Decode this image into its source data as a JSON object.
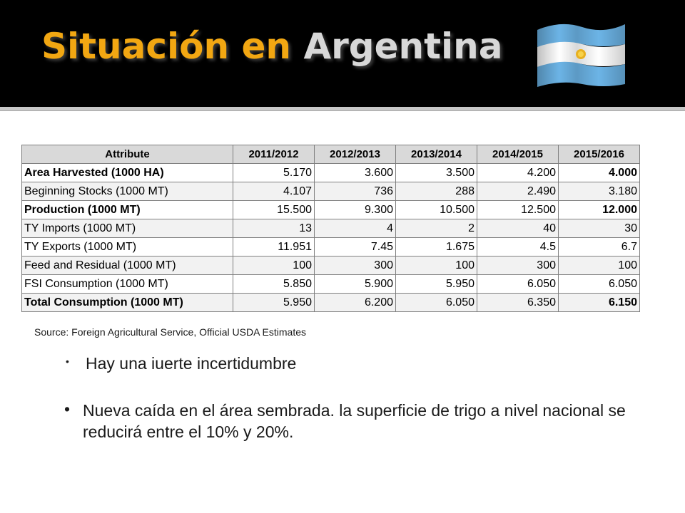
{
  "slide": {
    "title_part1": "Situación en ",
    "title_part2": "Argentina",
    "accent_color": "#f2a712",
    "flag": "argentina-flag-icon"
  },
  "table": {
    "headers": [
      "Attribute",
      "2011/2012",
      "2012/2013",
      "2013/2014",
      "2014/2015",
      "2015/2016"
    ],
    "rows": [
      {
        "label": "Area Harvested (1000 HA)",
        "values": [
          "5.170",
          "3.600",
          "3.500",
          "4.200",
          "4.000"
        ]
      },
      {
        "label": "Beginning Stocks (1000 MT)",
        "values": [
          "4.107",
          "736",
          "288",
          "2.490",
          "3.180"
        ]
      },
      {
        "label": "Production (1000 MT)",
        "values": [
          "15.500",
          "9.300",
          "10.500",
          "12.500",
          "12.000"
        ]
      },
      {
        "label": "TY Imports (1000 MT)",
        "values": [
          "13",
          "4",
          "2",
          "40",
          "30"
        ]
      },
      {
        "label": "TY Exports (1000 MT)",
        "values": [
          "11.951",
          "7.45",
          "1.675",
          "4.5",
          "6.7"
        ]
      },
      {
        "label": "Feed and Residual (1000 MT)",
        "values": [
          "100",
          "300",
          "100",
          "300",
          "100"
        ]
      },
      {
        "label": "FSI Consumption (1000 MT)",
        "values": [
          "5.850",
          "5.900",
          "5.950",
          "6.050",
          "6.050"
        ]
      },
      {
        "label": "Total Consumption (1000 MT)",
        "values": [
          "5.950",
          "6.200",
          "6.050",
          "6.350",
          "6.150"
        ]
      }
    ]
  },
  "source": "Source: Foreign Agricultural Service, Official USDA Estimates",
  "bullets": [
    "Hay una iuerte incertidumbre",
    "Nueva caída en el área sembrada. la superficie de trigo a nivel nacional se reducirá entre el 10% y 20%."
  ]
}
